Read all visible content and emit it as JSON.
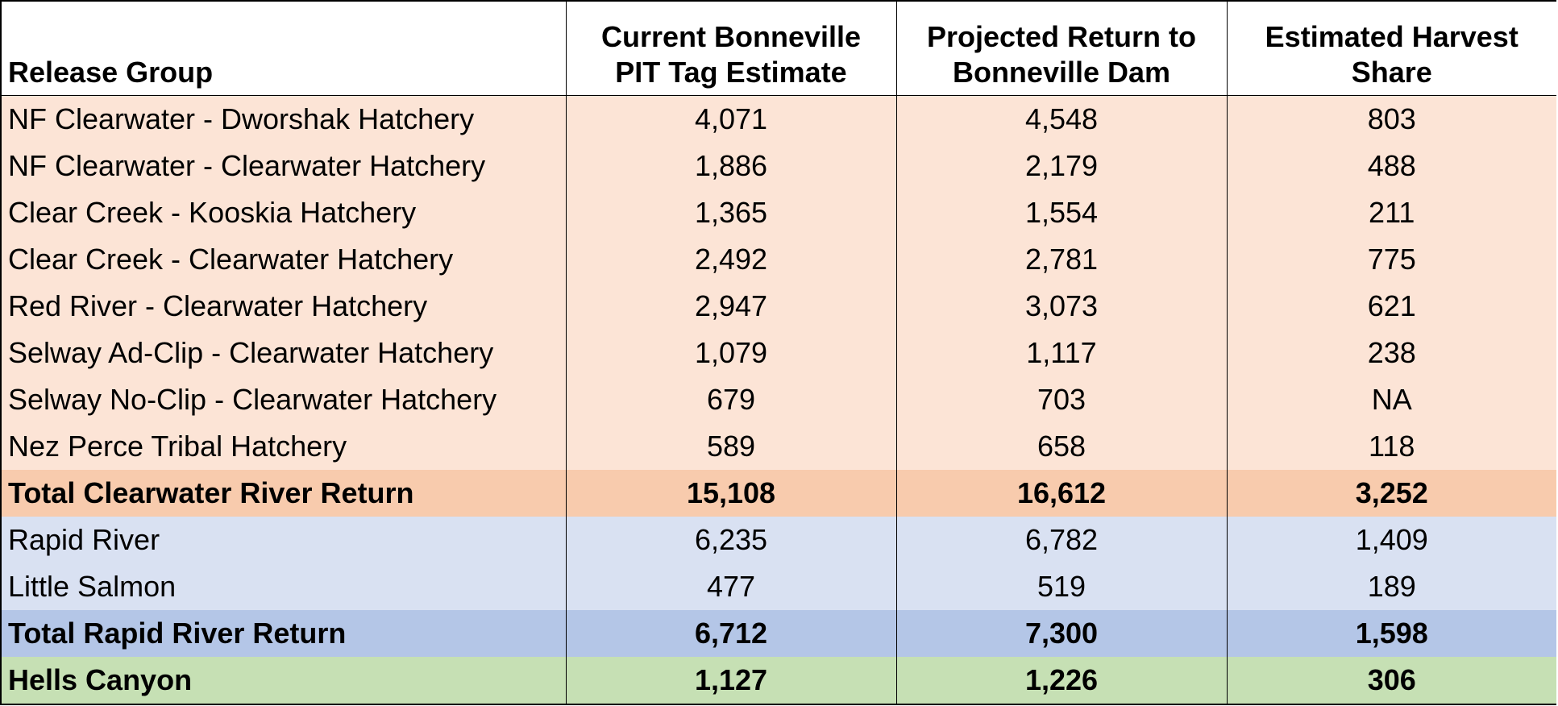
{
  "header": {
    "release_group": "Release Group",
    "col1": [
      "Current Bonneville",
      "PIT Tag Estimate"
    ],
    "col2": [
      "Projected Return to",
      "Bonneville Dam"
    ],
    "col3": [
      "Estimated Harvest",
      "Share"
    ]
  },
  "rows": [
    {
      "group": "NF Clearwater - Dworshak Hatchery",
      "current": "4,071",
      "projected": "4,548",
      "harvest": "803"
    },
    {
      "group": "NF Clearwater - Clearwater Hatchery",
      "current": "1,886",
      "projected": "2,179",
      "harvest": "488"
    },
    {
      "group": "Clear Creek - Kooskia Hatchery",
      "current": "1,365",
      "projected": "1,554",
      "harvest": "211"
    },
    {
      "group": "Clear Creek - Clearwater Hatchery",
      "current": "2,492",
      "projected": "2,781",
      "harvest": "775"
    },
    {
      "group": "Red River - Clearwater Hatchery",
      "current": "2,947",
      "projected": "3,073",
      "harvest": "621"
    },
    {
      "group": "Selway Ad-Clip - Clearwater Hatchery",
      "current": "1,079",
      "projected": "1,117",
      "harvest": "238"
    },
    {
      "group": "Selway No-Clip - Clearwater Hatchery",
      "current": "679",
      "projected": "703",
      "harvest": "NA"
    },
    {
      "group": "Nez Perce Tribal Hatchery",
      "current": "589",
      "projected": "658",
      "harvest": "118"
    },
    {
      "group": "Total Clearwater River Return",
      "current": "15,108",
      "projected": "16,612",
      "harvest": "3,252"
    },
    {
      "group": "Rapid River",
      "current": "6,235",
      "projected": "6,782",
      "harvest": "1,409"
    },
    {
      "group": "Little Salmon",
      "current": "477",
      "projected": "519",
      "harvest": "189"
    },
    {
      "group": "Total Rapid River Return",
      "current": "6,712",
      "projected": "7,300",
      "harvest": "1,598"
    },
    {
      "group": "Hells Canyon",
      "current": "1,127",
      "projected": "1,226",
      "harvest": "306"
    }
  ],
  "colors": {
    "clearwater_row": "#fce4d6",
    "clearwater_total": "#f8cbad",
    "rapid_row": "#d9e1f2",
    "rapid_total": "#b4c6e7",
    "hells_canyon": "#c6e0b4"
  }
}
